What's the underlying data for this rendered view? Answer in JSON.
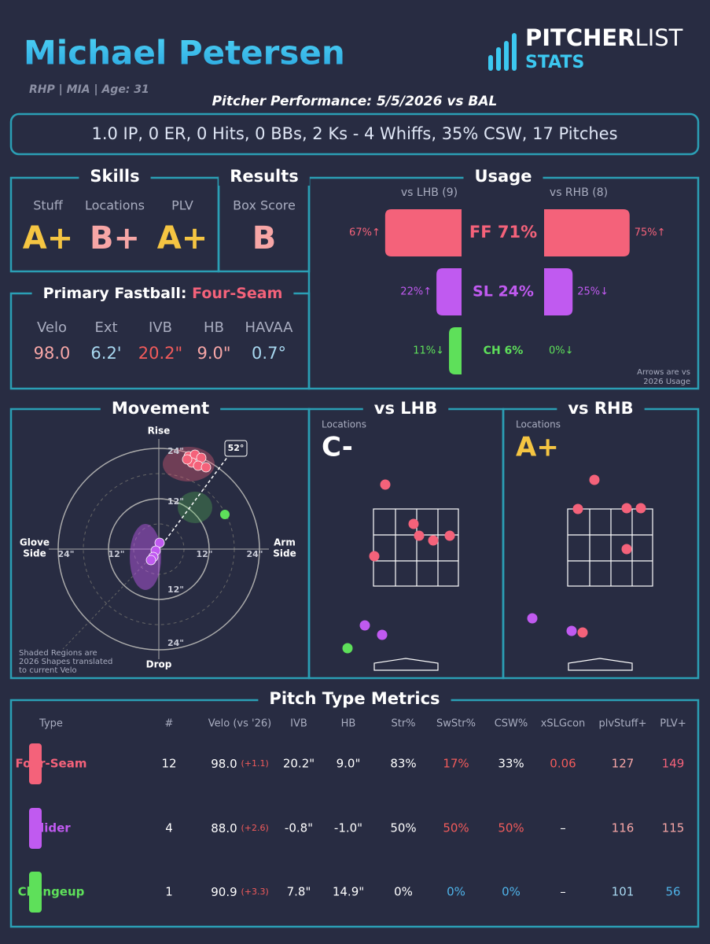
{
  "header": {
    "name": "Michael Petersen",
    "info": "RHP | MIA | Age: 31",
    "logo_a": "PITCHER",
    "logo_b": "LIST",
    "logo_c": "STATS",
    "performance": "Pitcher Performance: 5/5/2026 vs BAL",
    "summary": "1.0 IP, 0 ER, 0 Hits, 0 BBs, 2 Ks - 4 Whiffs, 35% CSW, 17 Pitches"
  },
  "skills": {
    "title": "Skills",
    "grades": [
      {
        "label": "Stuff",
        "grade": "A+",
        "color": "#f5c542"
      },
      {
        "label": "Locations",
        "grade": "B+",
        "color": "#f7a6a6"
      },
      {
        "label": "PLV",
        "grade": "A+",
        "color": "#f5c542"
      }
    ]
  },
  "results": {
    "title": "Results",
    "label": "Box Score",
    "grade": "B",
    "color": "#f7a6a6"
  },
  "fastball": {
    "title": "Primary Fastball:",
    "pitch": "Four-Seam",
    "metrics": [
      {
        "label": "Velo",
        "value": "98.0",
        "color": "#f7a6a6"
      },
      {
        "label": "Ext",
        "value": "6.2'",
        "color": "#a8d8f0"
      },
      {
        "label": "IVB",
        "value": "20.2\"",
        "color": "#f25b5b"
      },
      {
        "label": "HB",
        "value": "9.0\"",
        "color": "#f7a6a6"
      },
      {
        "label": "HAVAA",
        "value": "0.7°",
        "color": "#a8d8f0"
      }
    ]
  },
  "usage": {
    "title": "Usage",
    "lhb_header": "vs LHB (9)",
    "rhb_header": "vs RHB (8)",
    "note": [
      "Arrows are vs",
      "2026 Usage"
    ],
    "rows": [
      {
        "pitch": "FF 71%",
        "color": "#f4627a",
        "lhb": 67,
        "lhb_label": "67%↑",
        "rhb": 75,
        "rhb_label": "75%↑"
      },
      {
        "pitch": "SL 24%",
        "color": "#c05af0",
        "lhb": 22,
        "lhb_label": "22%↑",
        "rhb": 25,
        "rhb_label": "25%↓"
      },
      {
        "pitch": "CH 6%",
        "color": "#5ee05a",
        "lhb": 11,
        "lhb_label": "11%↓",
        "rhb": 0,
        "rhb_label": "0%↓"
      }
    ]
  },
  "movement": {
    "title": "Movement",
    "top": "Rise",
    "bottom": "Drop",
    "left": [
      "Glove",
      "Side"
    ],
    "right": [
      "Arm",
      "Side"
    ],
    "ring_outer": "24\"",
    "ring_inner": "12\"",
    "angle": "52°",
    "note": [
      "Shaded Regions are",
      "2026 Shapes translated",
      "to current Velo"
    ]
  },
  "locations": [
    {
      "title": "vs LHB",
      "label": "Locations",
      "grade": "C-",
      "color": "#ffffff"
    },
    {
      "title": "vs RHB",
      "label": "Locations",
      "grade": "A+",
      "color": "#f5c542"
    }
  ],
  "metrics": {
    "title": "Pitch Type Metrics",
    "columns": [
      "Type",
      "#",
      "Velo (vs '26)",
      "IVB",
      "HB",
      "Str%",
      "SwStr%",
      "CSW%",
      "xSLGcon",
      "plvStuff+",
      "PLV+"
    ],
    "rows": [
      {
        "color": "#f4627a",
        "cells": [
          "Four-Seam",
          "12",
          "98.0",
          "20.2\"",
          "9.0\"",
          "83%",
          "17%",
          "33%",
          "0.06",
          "127",
          "149"
        ],
        "velo_diff": "(+1.1)"
      },
      {
        "color": "#c05af0",
        "cells": [
          "Slider",
          "4",
          "88.0",
          "-0.8\"",
          "-1.0\"",
          "50%",
          "50%",
          "50%",
          "–",
          "116",
          "115"
        ],
        "velo_diff": "(+2.6)"
      },
      {
        "color": "#5ee05a",
        "cells": [
          "Changeup",
          "1",
          "90.9",
          "7.8\"",
          "14.9\"",
          "0%",
          "0%",
          "0%",
          "–",
          "101",
          "56"
        ],
        "velo_diff": "(+3.3)"
      }
    ]
  }
}
